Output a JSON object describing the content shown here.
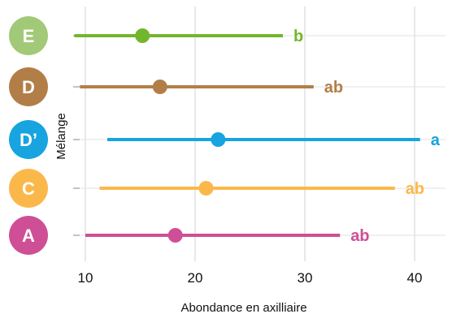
{
  "chart_data": {
    "type": "errorbar",
    "xlabel": "Abondance en axilliaire",
    "ylabel": "Mélange",
    "xlim": [
      9,
      42
    ],
    "xticks": [
      10,
      20,
      30,
      40
    ],
    "grid": true,
    "categories": [
      {
        "name": "E",
        "mean": 15.2,
        "low": 9.0,
        "high": 28.0,
        "letter": "b",
        "color": "#72b62e",
        "badge_color": "#a2c978"
      },
      {
        "name": "D",
        "mean": 16.8,
        "low": 9.5,
        "high": 30.8,
        "letter": "ab",
        "color": "#b27e48",
        "badge_color": "#b27e48"
      },
      {
        "name": "D’",
        "mean": 22.1,
        "low": 12.0,
        "high": 40.5,
        "letter": "a",
        "color": "#17a4df",
        "badge_color": "#17a4df"
      },
      {
        "name": "C",
        "mean": 21.0,
        "low": 11.3,
        "high": 38.2,
        "letter": "ab",
        "color": "#fbb84a",
        "badge_color": "#fbb84a"
      },
      {
        "name": "A",
        "mean": 18.2,
        "low": 10.0,
        "high": 33.2,
        "letter": "ab",
        "color": "#cf4f96",
        "badge_color": "#cf4f96"
      }
    ]
  }
}
